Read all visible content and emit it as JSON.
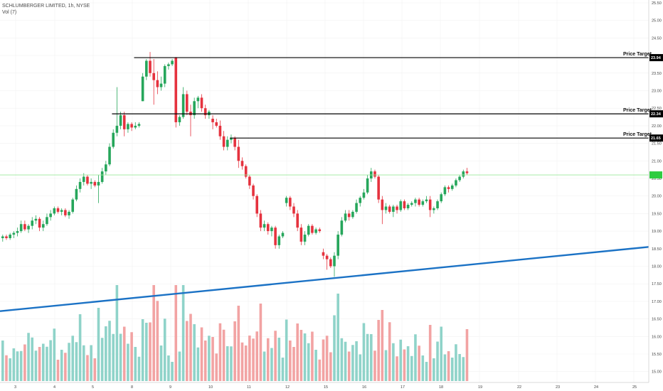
{
  "header": {
    "title": "SCHLUMBERGER LIMITED, 1h, NYSE",
    "volume_label": "Vol (7)"
  },
  "chart_data": {
    "type": "candlestick",
    "timeframe": "1h",
    "x_ticks": [
      "3",
      "4",
      "5",
      "8",
      "9",
      "10",
      "11",
      "12",
      "15",
      "16",
      "17",
      "18",
      "19",
      "22",
      "23",
      "24",
      "25"
    ],
    "y_ticks": [
      "25.50",
      "25.00",
      "24.50",
      "24.00",
      "23.50",
      "23.00",
      "22.50",
      "22.00",
      "21.50",
      "21.00",
      "20.50",
      "20.00",
      "19.50",
      "19.00",
      "18.50",
      "18.00",
      "17.50",
      "17.00",
      "16.50",
      "16.00",
      "15.50",
      "15.00"
    ],
    "ylim": [
      14.8,
      25.6
    ],
    "current_price": 20.6,
    "price_targets": [
      {
        "label": "Price Target",
        "value": "23.94",
        "price": 23.94
      },
      {
        "label": "Price Target",
        "value": "22.34",
        "price": 22.34
      },
      {
        "label": "Price Target",
        "value": "21.65",
        "price": 21.65
      }
    ],
    "trendline": {
      "start": {
        "bar": 0,
        "price": 16.72
      },
      "end": {
        "bar": 176,
        "price": 18.55
      }
    },
    "candles": [
      [
        18.8,
        18.9,
        18.7,
        18.85
      ],
      [
        18.85,
        18.9,
        18.75,
        18.8
      ],
      [
        18.8,
        18.95,
        18.75,
        18.9
      ],
      [
        18.9,
        19.0,
        18.8,
        18.95
      ],
      [
        18.95,
        19.1,
        18.85,
        19.0
      ],
      [
        19.0,
        19.3,
        18.95,
        19.2
      ],
      [
        19.2,
        19.3,
        19.0,
        19.05
      ],
      [
        19.05,
        19.2,
        18.95,
        19.15
      ],
      [
        19.15,
        19.4,
        19.05,
        19.3
      ],
      [
        19.3,
        19.45,
        19.2,
        19.35
      ],
      [
        19.35,
        19.4,
        19.0,
        19.1
      ],
      [
        19.1,
        19.3,
        19.0,
        19.2
      ],
      [
        19.2,
        19.5,
        19.15,
        19.4
      ],
      [
        19.4,
        19.6,
        19.3,
        19.5
      ],
      [
        19.5,
        19.7,
        19.45,
        19.65
      ],
      [
        19.65,
        19.7,
        19.5,
        19.55
      ],
      [
        19.55,
        19.65,
        19.45,
        19.6
      ],
      [
        19.6,
        19.65,
        19.4,
        19.45
      ],
      [
        19.45,
        19.6,
        19.35,
        19.55
      ],
      [
        19.55,
        19.95,
        19.5,
        19.9
      ],
      [
        19.9,
        20.3,
        19.85,
        20.2
      ],
      [
        20.2,
        20.5,
        20.1,
        20.4
      ],
      [
        20.4,
        20.65,
        20.3,
        20.55
      ],
      [
        20.55,
        20.6,
        20.3,
        20.35
      ],
      [
        20.35,
        20.5,
        20.2,
        20.4
      ],
      [
        20.4,
        20.45,
        20.25,
        20.3
      ],
      [
        20.3,
        20.6,
        19.8,
        20.4
      ],
      [
        20.4,
        20.8,
        20.35,
        20.7
      ],
      [
        20.7,
        21.0,
        20.6,
        20.9
      ],
      [
        20.9,
        21.5,
        20.85,
        21.4
      ],
      [
        21.4,
        21.9,
        21.35,
        21.8
      ],
      [
        21.8,
        23.1,
        21.7,
        22.0
      ],
      [
        22.0,
        22.4,
        21.9,
        22.3
      ],
      [
        22.3,
        22.4,
        21.7,
        21.9
      ],
      [
        21.9,
        22.1,
        21.8,
        22.05
      ],
      [
        22.05,
        22.1,
        21.85,
        21.95
      ],
      [
        21.95,
        22.1,
        21.9,
        22.0
      ],
      [
        22.0,
        22.1,
        21.95,
        22.05
      ],
      [
        22.7,
        23.5,
        22.7,
        23.4
      ],
      [
        23.4,
        23.9,
        23.3,
        23.85
      ],
      [
        23.85,
        24.1,
        23.4,
        23.5
      ],
      [
        23.5,
        23.9,
        22.6,
        23.3
      ],
      [
        23.3,
        23.55,
        22.9,
        23.1
      ],
      [
        23.1,
        23.4,
        23.0,
        23.2
      ],
      [
        23.2,
        23.75,
        23.1,
        23.7
      ],
      [
        23.7,
        23.8,
        23.6,
        23.75
      ],
      [
        23.75,
        23.9,
        23.7,
        23.85
      ],
      [
        23.94,
        23.96,
        21.95,
        22.1
      ],
      [
        22.1,
        22.3,
        22.0,
        22.25
      ],
      [
        22.25,
        23.1,
        22.2,
        22.9
      ],
      [
        22.9,
        23.0,
        22.3,
        22.4
      ],
      [
        22.4,
        22.6,
        21.7,
        22.3
      ],
      [
        22.3,
        22.8,
        22.2,
        22.7
      ],
      [
        22.7,
        22.85,
        22.5,
        22.8
      ],
      [
        22.8,
        22.9,
        22.4,
        22.5
      ],
      [
        22.5,
        22.6,
        22.2,
        22.3
      ],
      [
        22.3,
        22.45,
        22.2,
        22.4
      ],
      [
        22.2,
        22.3,
        21.9,
        22.1
      ],
      [
        22.1,
        22.2,
        21.95,
        22.0
      ],
      [
        22.0,
        22.15,
        21.6,
        21.7
      ],
      [
        21.7,
        21.85,
        21.3,
        21.4
      ],
      [
        21.4,
        21.7,
        21.3,
        21.6
      ],
      [
        21.6,
        21.75,
        21.5,
        21.65
      ],
      [
        21.65,
        21.7,
        21.3,
        21.4
      ],
      [
        21.4,
        21.6,
        20.8,
        21.0
      ],
      [
        21.0,
        21.1,
        20.75,
        20.85
      ],
      [
        20.85,
        20.9,
        20.5,
        20.55
      ],
      [
        20.55,
        20.6,
        20.2,
        20.3
      ],
      [
        20.3,
        20.35,
        19.9,
        20.0
      ],
      [
        20.0,
        20.05,
        19.4,
        19.5
      ],
      [
        19.5,
        19.6,
        19.0,
        19.1
      ],
      [
        19.1,
        19.3,
        19.0,
        19.2
      ],
      [
        19.2,
        19.25,
        18.9,
        19.0
      ],
      [
        19.0,
        19.15,
        18.85,
        19.1
      ],
      [
        19.1,
        19.15,
        18.5,
        18.6
      ],
      [
        18.6,
        18.9,
        18.5,
        18.85
      ],
      [
        18.85,
        19.0,
        18.8,
        18.95
      ],
      [
        19.8,
        20.0,
        19.7,
        19.95
      ],
      [
        19.95,
        20.0,
        19.6,
        19.7
      ],
      [
        19.7,
        19.8,
        19.4,
        19.5
      ],
      [
        19.5,
        19.6,
        19.0,
        19.1
      ],
      [
        19.1,
        19.2,
        18.6,
        18.7
      ],
      [
        18.7,
        19.0,
        18.6,
        18.9
      ],
      [
        18.9,
        19.2,
        18.85,
        19.15
      ],
      [
        19.15,
        19.2,
        18.9,
        18.95
      ],
      [
        18.95,
        19.1,
        18.9,
        19.05
      ],
      [
        19.05,
        19.1,
        18.95,
        19.0
      ],
      [
        18.4,
        18.5,
        18.2,
        18.3
      ],
      [
        18.3,
        18.35,
        17.9,
        18.2
      ],
      [
        18.2,
        18.25,
        17.95,
        18.0
      ],
      [
        18.0,
        18.4,
        17.7,
        18.3
      ],
      [
        18.3,
        19.0,
        18.2,
        18.9
      ],
      [
        18.9,
        19.4,
        18.85,
        19.3
      ],
      [
        19.3,
        19.6,
        19.25,
        19.5
      ],
      [
        19.5,
        19.6,
        19.3,
        19.4
      ],
      [
        19.4,
        19.6,
        19.35,
        19.55
      ],
      [
        19.55,
        19.9,
        19.5,
        19.8
      ],
      [
        19.8,
        20.0,
        19.7,
        19.95
      ],
      [
        19.95,
        20.2,
        19.9,
        20.1
      ],
      [
        20.1,
        20.6,
        20.05,
        20.5
      ],
      [
        20.5,
        20.8,
        20.4,
        20.7
      ],
      [
        20.7,
        20.75,
        20.5,
        20.55
      ],
      [
        20.55,
        20.6,
        19.8,
        19.9
      ],
      [
        19.9,
        20.0,
        19.2,
        19.6
      ],
      [
        19.6,
        19.8,
        19.5,
        19.7
      ],
      [
        19.7,
        19.75,
        19.5,
        19.55
      ],
      [
        19.55,
        19.75,
        19.4,
        19.7
      ],
      [
        19.7,
        19.75,
        19.5,
        19.6
      ],
      [
        19.6,
        19.9,
        19.55,
        19.85
      ],
      [
        19.85,
        19.9,
        19.6,
        19.65
      ],
      [
        19.65,
        19.8,
        19.6,
        19.75
      ],
      [
        19.75,
        19.85,
        19.7,
        19.8
      ],
      [
        19.8,
        19.95,
        19.7,
        19.9
      ],
      [
        19.9,
        19.95,
        19.7,
        19.75
      ],
      [
        19.75,
        19.9,
        19.7,
        19.85
      ],
      [
        19.85,
        20.0,
        19.8,
        19.9
      ],
      [
        19.9,
        20.0,
        19.4,
        19.6
      ],
      [
        19.6,
        19.7,
        19.5,
        19.65
      ],
      [
        19.65,
        19.9,
        19.6,
        19.85
      ],
      [
        19.85,
        20.1,
        19.8,
        20.05
      ],
      [
        20.05,
        20.3,
        20.0,
        20.25
      ],
      [
        20.25,
        20.3,
        20.1,
        20.2
      ],
      [
        20.2,
        20.35,
        20.15,
        20.3
      ],
      [
        20.3,
        20.5,
        20.25,
        20.45
      ],
      [
        20.45,
        20.6,
        20.4,
        20.55
      ],
      [
        20.55,
        20.75,
        20.5,
        20.7
      ],
      [
        20.7,
        20.8,
        20.6,
        20.65
      ]
    ],
    "volume_note": "Volume histogram in lower panel, green/red per candle direction"
  },
  "colors": {
    "up": "#26a65b",
    "down": "#e5323e",
    "vol_up": "#8fd3c9",
    "vol_down": "#f2a3a3",
    "trendline": "#1b72c5",
    "target_line": "#000000",
    "current_price_line": "#9be89b",
    "current_price_badge": "#2ecc40",
    "grid": "#f2f2f2",
    "axis_text": "#444444"
  }
}
